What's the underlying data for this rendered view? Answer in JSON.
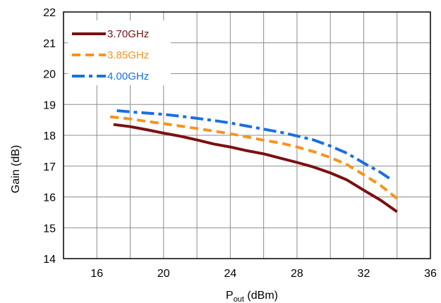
{
  "chart_data": {
    "type": "line",
    "xlabel_main": "P",
    "xlabel_sub": "out",
    "xlabel_unit": " (dBm)",
    "ylabel": "Gain (dB)",
    "xlim": [
      14,
      36
    ],
    "ylim": [
      14,
      22
    ],
    "xticks": [
      16,
      20,
      24,
      28,
      32,
      36
    ],
    "yticks": [
      14,
      15,
      16,
      17,
      18,
      19,
      20,
      21,
      22
    ],
    "x_minor_step": 2,
    "grid": true,
    "legend_position": "top-left",
    "series": [
      {
        "name": "3.70GHz",
        "color": "#7b1010",
        "dash": "solid",
        "x": [
          17.0,
          18.0,
          19.0,
          20.0,
          21.0,
          22.0,
          23.0,
          24.0,
          25.0,
          26.0,
          27.0,
          28.0,
          29.0,
          30.0,
          31.0,
          32.0,
          33.0,
          34.0
        ],
        "y": [
          18.35,
          18.28,
          18.18,
          18.07,
          17.97,
          17.85,
          17.72,
          17.62,
          17.5,
          17.4,
          17.26,
          17.12,
          16.97,
          16.78,
          16.55,
          16.22,
          15.9,
          15.52
        ]
      },
      {
        "name": "3.85GHz",
        "color": "#f7941d",
        "dash": "dashed",
        "x": [
          16.8,
          18.0,
          19.0,
          20.0,
          21.0,
          22.0,
          23.0,
          24.0,
          25.0,
          26.0,
          27.0,
          28.0,
          29.0,
          30.0,
          31.0,
          32.0,
          33.0,
          34.0
        ],
        "y": [
          18.6,
          18.53,
          18.45,
          18.38,
          18.3,
          18.22,
          18.14,
          18.05,
          17.95,
          17.84,
          17.75,
          17.62,
          17.47,
          17.28,
          17.05,
          16.72,
          16.38,
          15.95
        ]
      },
      {
        "name": "4.00GHz",
        "color": "#1a6fe0",
        "dash": "dashdot",
        "x": [
          17.2,
          18.0,
          19.0,
          20.0,
          21.0,
          22.0,
          23.0,
          24.0,
          25.0,
          26.0,
          27.0,
          28.0,
          29.0,
          30.0,
          31.0,
          32.0,
          33.0,
          33.6
        ],
        "y": [
          18.8,
          18.76,
          18.72,
          18.68,
          18.62,
          18.55,
          18.48,
          18.4,
          18.3,
          18.2,
          18.1,
          17.98,
          17.85,
          17.65,
          17.42,
          17.1,
          16.8,
          16.58
        ]
      }
    ]
  }
}
